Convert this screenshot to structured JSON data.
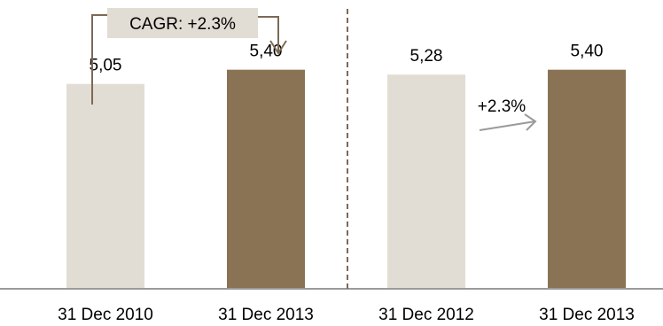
{
  "chart_data": {
    "type": "bar",
    "categories": [
      "31 Dec 2010",
      "31 Dec 2013",
      "31 Dec 2012",
      "31 Dec 2013"
    ],
    "values": [
      5.05,
      5.4,
      5.28,
      5.4
    ],
    "value_labels": [
      "5,05",
      "5,40",
      "5,28",
      "5,40"
    ],
    "bar_colors": [
      "#e2ddd4",
      "#8a7254",
      "#e2ddd4",
      "#8a7254"
    ],
    "ylim": [
      0,
      6.9
    ],
    "title": "",
    "xlabel": "",
    "ylabel": "",
    "grid": false,
    "annotations": [
      {
        "text": "CAGR: +2.3%",
        "from_category": 0,
        "to_category": 1,
        "style": "bracket-arrow"
      },
      {
        "text": "+2.3%",
        "from_category": 2,
        "to_category": 3,
        "style": "arrow"
      }
    ],
    "divider": "dashed line between category 2 and 3"
  },
  "colors": {
    "light_bar": "#e2ddd4",
    "dark_bar": "#8a7254",
    "axis": "#9a9a9a",
    "arrow": "#9a9a9a",
    "divider": "#7d6a55",
    "label_box": "#e2ddd4",
    "text": "#000000"
  }
}
